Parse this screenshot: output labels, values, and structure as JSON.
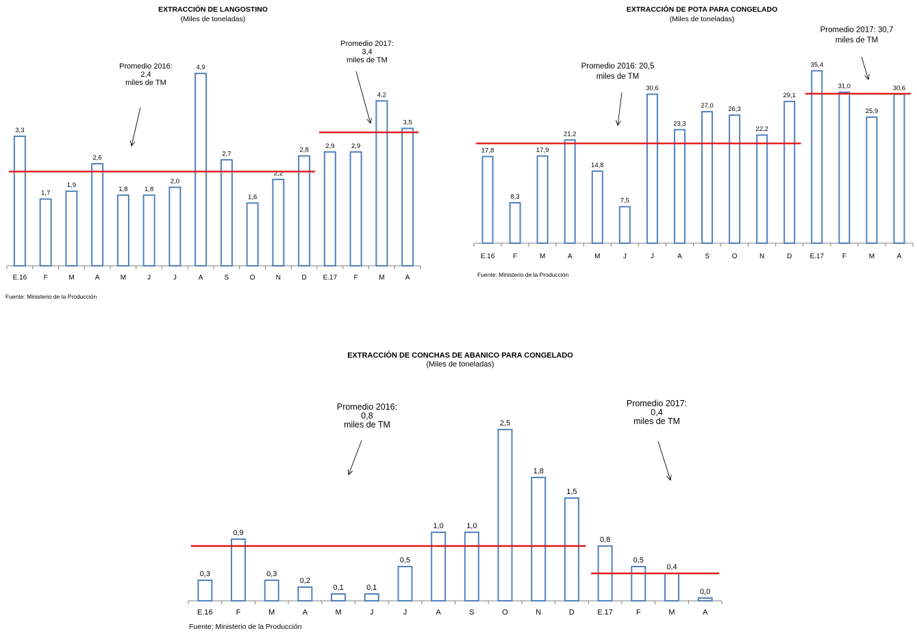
{
  "colors": {
    "bar_stroke": "#4f81bd",
    "average_line": "#e3141a",
    "axis": "#7f7f7f"
  },
  "chart_data": [
    {
      "type": "bar",
      "title": "EXTRACCIÓN DE LANGOSTINO",
      "subtitle": "(Miles de toneladas)",
      "categories": [
        "E.16",
        "F",
        "M",
        "A",
        "M",
        "J",
        "J",
        "A",
        "S",
        "O",
        "N",
        "D",
        "E.17",
        "F",
        "M",
        "A"
      ],
      "values": [
        3.3,
        1.7,
        1.9,
        2.6,
        1.8,
        1.8,
        2.0,
        4.9,
        2.7,
        1.6,
        2.2,
        2.8,
        2.9,
        2.9,
        4.2,
        3.5
      ],
      "value_labels": [
        "3,3",
        "1,7",
        "1,9",
        "2,6",
        "1,8",
        "1,8",
        "2,0",
        "4,9",
        "2,7",
        "1,6",
        "2,2",
        "2,8",
        "2,9",
        "2,9",
        "4,2",
        "3,5"
      ],
      "ylim": [
        0,
        5.2
      ],
      "averages": [
        {
          "value": 2.4,
          "from": 0,
          "to": 11,
          "label": [
            "Promedio 2016:",
            "2,4",
            "miles de TM"
          ]
        },
        {
          "value": 3.4,
          "from": 12,
          "to": 15,
          "label": [
            "Promedio 2017:",
            "3,4",
            "miles de TM"
          ]
        }
      ],
      "source": "Fuente: Ministerio de la Producción"
    },
    {
      "type": "bar",
      "title": "EXTRACCIÓN DE POTA PARA CONGELADO",
      "subtitle": "(Miles de toneladas)",
      "categories": [
        "E.16",
        "F",
        "M",
        "A",
        "M",
        "J",
        "J",
        "A",
        "S",
        "O",
        "N",
        "D",
        "E.17",
        "F",
        "M",
        "A"
      ],
      "values": [
        17.8,
        8.3,
        17.9,
        21.2,
        14.8,
        7.5,
        30.6,
        23.3,
        27.0,
        26.3,
        22.2,
        29.1,
        35.4,
        31.0,
        25.9,
        30.6
      ],
      "value_labels": [
        "17,8",
        "8,3",
        "17,9",
        "21,2",
        "14,8",
        "7,5",
        "30,6",
        "23,3",
        "27,0",
        "26,3",
        "22,2",
        "29,1",
        "35,4",
        "31,0",
        "25,9",
        "30,6"
      ],
      "ylim": [
        0,
        37
      ],
      "averages": [
        {
          "value": 20.5,
          "from": 0,
          "to": 11,
          "label": [
            "Promedio 2016: 20,5",
            "miles de TM"
          ]
        },
        {
          "value": 30.7,
          "from": 12,
          "to": 15,
          "label": [
            "Promedio 2017: 30,7",
            "miles de TM"
          ]
        }
      ],
      "source": "Fuente: Ministerio de la Producción"
    },
    {
      "type": "bar",
      "title": "EXTRACCIÓN DE CONCHAS DE ABANICO PARA CONGELADO",
      "subtitle": "(Miles de toneladas)",
      "categories": [
        "E.16",
        "F",
        "M",
        "A",
        "M",
        "J",
        "J",
        "A",
        "S",
        "O",
        "N",
        "D",
        "E.17",
        "F",
        "M",
        "A"
      ],
      "values": [
        0.3,
        0.9,
        0.3,
        0.2,
        0.1,
        0.1,
        0.5,
        1.0,
        1.0,
        2.5,
        1.8,
        1.5,
        0.8,
        0.5,
        0.4,
        0.04
      ],
      "value_labels": [
        "0,3",
        "0,9",
        "0,3",
        "0,2",
        "0,1",
        "0,1",
        "0,5",
        "1,0",
        "1,0",
        "2,5",
        "1,8",
        "1,5",
        "0,8",
        "0,5",
        "0,4",
        "0,0"
      ],
      "ylim": [
        0,
        2.75
      ],
      "averages": [
        {
          "value": 0.8,
          "from": 0,
          "to": 11,
          "label": [
            "Promedio 2016:",
            "0,8",
            "miles de TM"
          ]
        },
        {
          "value": 0.4,
          "from": 12,
          "to": 15,
          "label": [
            "Promedio 2017:",
            "0,4",
            "miles de TM"
          ]
        }
      ],
      "source": "Fuente: Ministerio de la Producción"
    }
  ]
}
